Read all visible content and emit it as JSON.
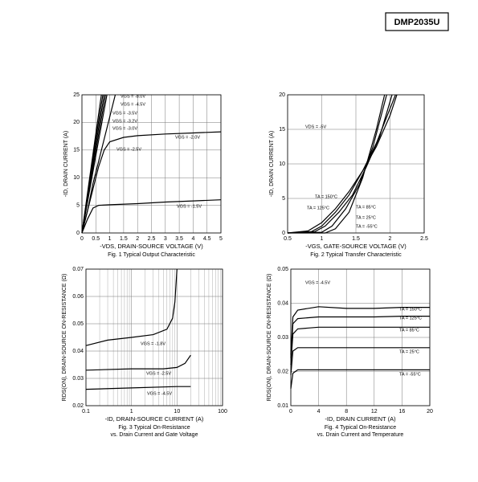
{
  "header": {
    "part_number": "DMP2035U"
  },
  "chart_data": [
    {
      "type": "line",
      "title": [
        "Fig. 1 Typical Output Characteristic"
      ],
      "xlabel": "-VDS, DRAIN-SOURCE VOLTAGE (V)",
      "ylabel": "-ID, DRAIN CURRENT (A)",
      "xlim": [
        0,
        5
      ],
      "xticks": [
        0,
        0.5,
        1,
        1.5,
        2,
        2.5,
        3,
        3.5,
        4,
        4.5,
        5
      ],
      "ylim": [
        0,
        25
      ],
      "yticks": [
        0,
        5,
        10,
        15,
        20,
        25
      ],
      "grid": true,
      "series": [
        {
          "name": "VGS = -8.0V",
          "color": "#000000",
          "x": [
            0,
            0.5,
            0.7
          ],
          "values": [
            0,
            18,
            25
          ]
        },
        {
          "name": "VGS = -4.5V",
          "color": "#000000",
          "x": [
            0,
            0.5,
            0.75
          ],
          "values": [
            0,
            17,
            25
          ]
        },
        {
          "name": "VGS = -3.5V",
          "color": "#000000",
          "x": [
            0,
            0.5,
            0.8
          ],
          "values": [
            0,
            16,
            25
          ]
        },
        {
          "name": "VGS = -3.2V",
          "color": "#000000",
          "x": [
            0,
            0.5,
            0.85
          ],
          "values": [
            0,
            15,
            25
          ]
        },
        {
          "name": "VGS = -3.0V",
          "color": "#000000",
          "x": [
            0,
            0.5,
            0.9
          ],
          "values": [
            0,
            14,
            25
          ]
        },
        {
          "name": "VGS = -2.5V",
          "color": "#000000",
          "x": [
            0,
            0.2,
            0.4,
            0.6,
            0.8,
            1,
            1.2
          ],
          "values": [
            0,
            4,
            9,
            13,
            17,
            21,
            25
          ]
        },
        {
          "name": "VGS = -2.0V",
          "color": "#000000",
          "x": [
            0,
            0.2,
            0.4,
            0.6,
            0.8,
            1,
            1.5,
            2,
            3,
            4,
            5
          ],
          "values": [
            0,
            4,
            8,
            12,
            15,
            16.5,
            17.3,
            17.6,
            17.9,
            18.1,
            18.3
          ]
        },
        {
          "name": "VGS = -1.5V",
          "color": "#000000",
          "x": [
            0,
            0.2,
            0.4,
            0.6,
            1,
            2,
            3,
            4,
            5
          ],
          "values": [
            0,
            2.5,
            4.5,
            5,
            5.1,
            5.3,
            5.6,
            5.8,
            6
          ]
        }
      ]
    },
    {
      "type": "line",
      "title": [
        "Fig. 2  Typical Transfer Characteristic"
      ],
      "xlabel": "-VGS, GATE-SOURCE VOLTAGE (V)",
      "ylabel": "-ID, DRAIN CURRENT (A)",
      "annotation": "VDS = -5V",
      "xlim": [
        0.5,
        2.5
      ],
      "xticks": [
        0.5,
        1,
        1.5,
        2,
        2.5
      ],
      "ylim": [
        0,
        20
      ],
      "yticks": [
        0,
        5,
        10,
        15,
        20
      ],
      "grid": true,
      "series": [
        {
          "name": "TA = 150°C",
          "color": "#000000",
          "x": [
            0.5,
            0.8,
            1,
            1.2,
            1.4,
            1.6,
            1.8,
            2,
            2.1
          ],
          "values": [
            0,
            0.3,
            1.5,
            3.5,
            6,
            9,
            12.5,
            17,
            20
          ]
        },
        {
          "name": "TA = 125°C",
          "color": "#000000",
          "x": [
            0.5,
            0.85,
            1,
            1.2,
            1.4,
            1.6,
            1.8,
            2,
            2.08
          ],
          "values": [
            0,
            0.2,
            1,
            3,
            5.5,
            9,
            13,
            18,
            20
          ]
        },
        {
          "name": "TA = 85°C",
          "color": "#000000",
          "x": [
            0.5,
            0.9,
            1.05,
            1.25,
            1.45,
            1.65,
            1.85,
            2.03
          ],
          "values": [
            0,
            0.2,
            1,
            3,
            5.5,
            9.5,
            14,
            20
          ]
        },
        {
          "name": "TA = 25°C",
          "color": "#000000",
          "x": [
            0.5,
            1,
            1.15,
            1.35,
            1.55,
            1.75,
            1.95
          ],
          "values": [
            0,
            0.1,
            1,
            3.5,
            7,
            12.5,
            20
          ]
        },
        {
          "name": "TA = -55°C",
          "color": "#000000",
          "x": [
            0.5,
            1.05,
            1.2,
            1.4,
            1.6,
            1.8,
            1.92
          ],
          "values": [
            0,
            0,
            0.6,
            3,
            8,
            15,
            20
          ]
        }
      ]
    },
    {
      "type": "line",
      "title": [
        "Fig. 3  Typical On-Resistance",
        "vs. Drain Current and Gate Voltage"
      ],
      "xlabel": "-ID, DRAIN-SOURCE CURRENT (A)",
      "ylabel": "RDS(ON), DRAIN-SOURCE ON-RESISTANCE (Ω)",
      "xscale": "log",
      "xlim": [
        0.1,
        100
      ],
      "xticks": [
        0.1,
        1,
        10,
        100
      ],
      "ylim": [
        0.02,
        0.07
      ],
      "yticks": [
        0.02,
        0.03,
        0.04,
        0.05,
        0.06,
        0.07
      ],
      "grid": true,
      "series": [
        {
          "name": "VGS = -1.8V",
          "color": "#000000",
          "x": [
            0.1,
            0.3,
            1,
            3,
            6,
            8,
            9,
            10
          ],
          "values": [
            0.042,
            0.044,
            0.045,
            0.046,
            0.048,
            0.052,
            0.058,
            0.07
          ]
        },
        {
          "name": "VGS = -2.5V",
          "color": "#000000",
          "x": [
            0.1,
            1,
            5,
            10,
            15,
            20
          ],
          "values": [
            0.033,
            0.0335,
            0.0335,
            0.034,
            0.0355,
            0.0385
          ]
        },
        {
          "name": "VGS = -4.5V",
          "color": "#000000",
          "x": [
            0.1,
            1,
            10,
            20
          ],
          "values": [
            0.026,
            0.0265,
            0.027,
            0.027
          ]
        }
      ]
    },
    {
      "type": "line",
      "title": [
        "Fig. 4  Typical On-Resistance",
        "vs. Drain Current and Temperature"
      ],
      "xlabel": "-ID, DRAIN CURRENT (A)",
      "ylabel": "RDS(ON), DRAIN-SOURCE ON-RESISTANCE (Ω)",
      "annotation": "VGS = -4.5V",
      "xlim": [
        0,
        20
      ],
      "xticks": [
        0,
        4,
        8,
        12,
        16,
        20
      ],
      "ylim": [
        0.01,
        0.05
      ],
      "yticks": [
        0.01,
        0.02,
        0.03,
        0.04,
        0.05
      ],
      "grid": true,
      "series": [
        {
          "name": "TA = 150°C",
          "color": "#000000",
          "x": [
            0,
            0.3,
            1,
            4,
            8,
            12,
            16,
            20
          ],
          "values": [
            0.025,
            0.036,
            0.038,
            0.039,
            0.0385,
            0.0385,
            0.0388,
            0.0388
          ]
        },
        {
          "name": "TA = 125°C",
          "color": "#000000",
          "x": [
            0,
            0.3,
            1,
            4,
            8,
            12,
            16,
            20
          ],
          "values": [
            0.024,
            0.034,
            0.0355,
            0.036,
            0.036,
            0.036,
            0.0362,
            0.0362
          ]
        },
        {
          "name": "TA = 85°C",
          "color": "#000000",
          "x": [
            0,
            0.3,
            1,
            4,
            8,
            12,
            16,
            20
          ],
          "values": [
            0.022,
            0.031,
            0.0325,
            0.033,
            0.033,
            0.033,
            0.033,
            0.033
          ]
        },
        {
          "name": "TA = 25°C",
          "color": "#000000",
          "x": [
            0,
            0.3,
            1,
            4,
            8,
            12,
            16,
            20
          ],
          "values": [
            0.019,
            0.026,
            0.027,
            0.027,
            0.027,
            0.027,
            0.027,
            0.027
          ]
        },
        {
          "name": "TA = -55°C",
          "color": "#000000",
          "x": [
            0,
            0.3,
            1,
            4,
            8,
            12,
            16,
            20
          ],
          "values": [
            0.015,
            0.0195,
            0.0205,
            0.0205,
            0.0205,
            0.0205,
            0.0205,
            0.0205
          ]
        }
      ]
    }
  ]
}
